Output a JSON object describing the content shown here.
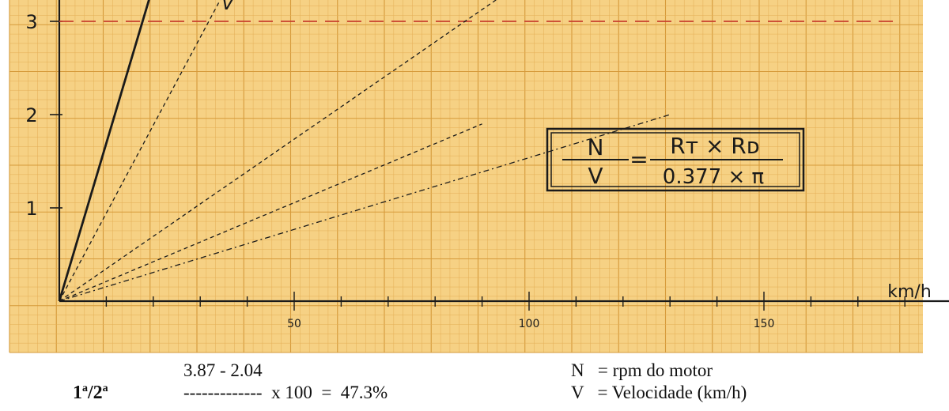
{
  "colors": {
    "paper": "#f6d184",
    "grid_minor": "#e4ae56",
    "grid_major": "#d69a3a",
    "ink": "#1a1a1a",
    "limit_line": "#c8402e"
  },
  "chart_data": {
    "type": "line",
    "xlabel": "km/h",
    "ylabel": "",
    "xlim": [
      0,
      190
    ],
    "ylim": [
      0,
      3.2
    ],
    "x_ticks": [
      50,
      100,
      150
    ],
    "y_ticks": [
      1,
      2,
      3
    ],
    "grid": true,
    "reference_line": {
      "y": 3,
      "style": "dashed",
      "color": "#c8402e"
    },
    "series": [
      {
        "style": "solid",
        "x": [
          0,
          19.5
        ],
        "y": [
          0,
          3.3
        ]
      },
      {
        "style": "dashed",
        "x": [
          0,
          35
        ],
        "y": [
          0,
          3.3
        ]
      },
      {
        "style": "dashed",
        "x": [
          0,
          95
        ],
        "y": [
          0,
          3.3
        ]
      },
      {
        "style": "dashed",
        "x": [
          0,
          90
        ],
        "y": [
          0,
          1.9
        ]
      },
      {
        "style": "dashdot",
        "x": [
          0,
          130
        ],
        "y": [
          0,
          2.0
        ]
      }
    ],
    "annotation_v": "V",
    "formula": {
      "num_left": "N",
      "den_left": "V",
      "num_right": "Rт × Rᴅ",
      "den_right": "0.377 × π"
    }
  },
  "calc": {
    "label_main": "1",
    "label_sup1": "a",
    "label_mid": "/2",
    "label_sup2": "a",
    "top": "3.87 - 2.04",
    "bottom": "-------------  x 100  =  47.3%"
  },
  "legend": [
    "N   = rpm do motor",
    "V   = Velocidade (km/h)"
  ]
}
